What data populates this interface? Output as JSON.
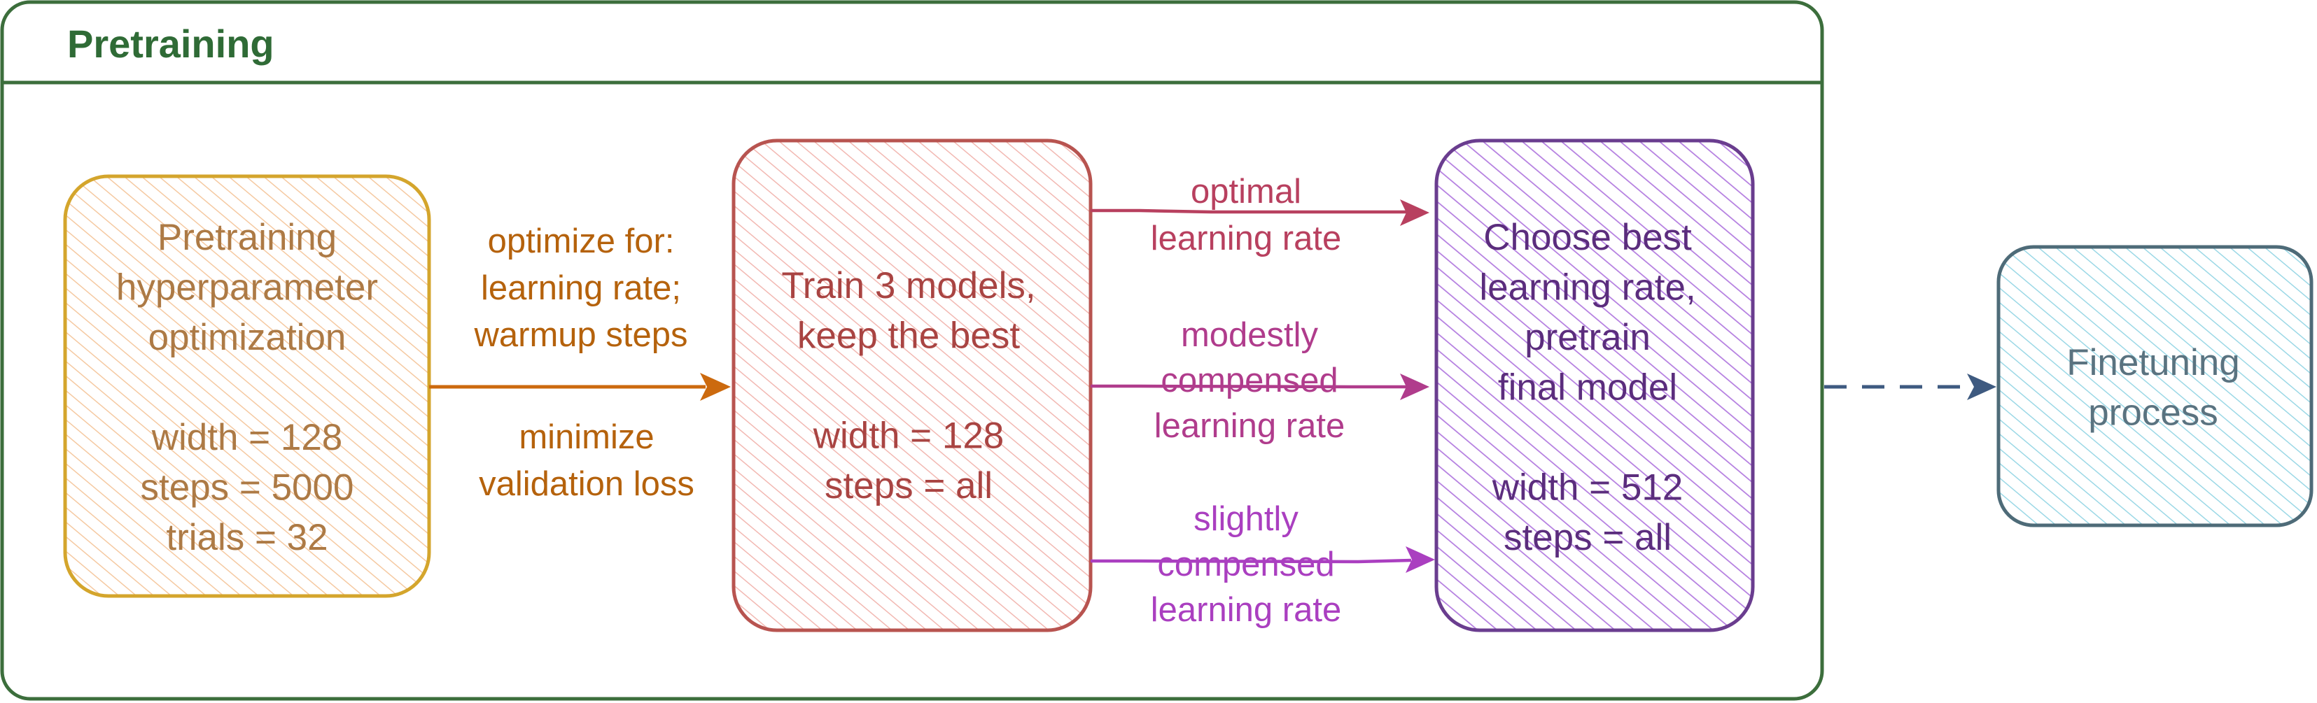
{
  "colors": {
    "frame": "#3c6e3c",
    "frame_title": "#2f6b36",
    "hpo_stroke": "#d4a52c",
    "hpo_hatch": "#f5c9a1",
    "hpo_text": "#ad7a45",
    "train_stroke": "#b85450",
    "train_hatch": "#f2b8b2",
    "train_text": "#a94442",
    "final_stroke": "#6a3d8f",
    "final_hatch": "#b47ee0",
    "final_text": "#5b2d7d",
    "finetune_stroke": "#4e6b78",
    "finetune_hatch": "#9bd8e6",
    "finetune_text": "#5a7380",
    "arrow_orange": "#cc6a0e",
    "label_orange": "#b5620c",
    "arrow_optimal": "#b8405f",
    "label_optimal": "#b8405f",
    "arrow_modest": "#b03c8c",
    "label_modest": "#b03c8c",
    "arrow_slight": "#aa3fc0",
    "label_slight": "#aa3fc0",
    "arrow_dashed": "#3e5a80"
  },
  "frame": {
    "title": "Pretraining"
  },
  "nodes": {
    "hpo": {
      "lines": [
        "Pretraining",
        "hyperparameter",
        "optimization",
        "",
        "width = 128",
        "steps = 5000",
        "trials = 32"
      ]
    },
    "train": {
      "lines": [
        "Train 3 models,",
        "keep the best",
        "",
        "width = 128",
        "steps = all"
      ]
    },
    "final": {
      "lines": [
        "Choose best",
        "learning rate,",
        "pretrain",
        "final model",
        "",
        "width = 512",
        "steps = all"
      ]
    },
    "finetune": {
      "lines": [
        "Finetuning",
        "process"
      ]
    }
  },
  "edges": {
    "hpo_to_train": {
      "above": [
        "optimize for:",
        "learning rate;",
        "warmup steps"
      ],
      "below": [
        "minimize",
        "validation loss"
      ]
    },
    "optimal": {
      "lines": [
        "optimal",
        "learning rate"
      ]
    },
    "modest": {
      "lines": [
        "modestly",
        "compensed",
        "learning rate"
      ]
    },
    "slight": {
      "lines": [
        "slightly",
        "compensed",
        "learning rate"
      ]
    }
  }
}
